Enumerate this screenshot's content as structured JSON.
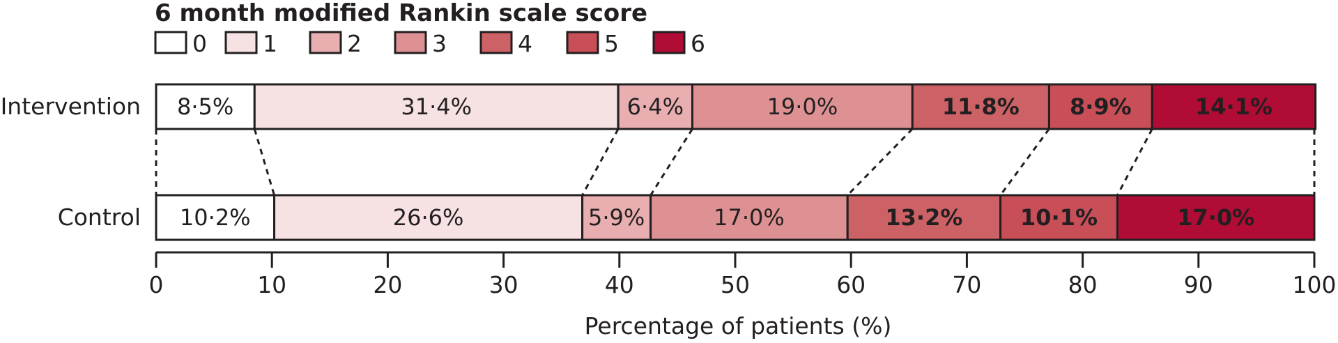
{
  "chart_data": {
    "type": "bar",
    "orientation": "horizontal",
    "stacked": true,
    "legend_title": "6 month modified Rankin scale score",
    "legend_position": "top-left",
    "legend_entries": [
      "0",
      "1",
      "2",
      "3",
      "4",
      "5",
      "6"
    ],
    "colors": [
      "#ffffff",
      "#f6e1e3",
      "#e9aeb0",
      "#dd9193",
      "#cd6266",
      "#c84e58",
      "#b10c35"
    ],
    "categories": [
      "Intervention",
      "Control"
    ],
    "series": [
      {
        "name": "0",
        "values": [
          8.5,
          10.2
        ],
        "labels": [
          "8·5%",
          "10·2%"
        ]
      },
      {
        "name": "1",
        "values": [
          31.4,
          26.6
        ],
        "labels": [
          "31·4%",
          "26·6%"
        ]
      },
      {
        "name": "2",
        "values": [
          6.4,
          5.9
        ],
        "labels": [
          "6·4%",
          "5·9%"
        ]
      },
      {
        "name": "3",
        "values": [
          19.0,
          17.0
        ],
        "labels": [
          "19·0%",
          "17·0%"
        ]
      },
      {
        "name": "4",
        "values": [
          11.8,
          13.2
        ],
        "labels": [
          "11·8%",
          "13·2%"
        ]
      },
      {
        "name": "5",
        "values": [
          8.9,
          10.1
        ],
        "labels": [
          "8·9%",
          "10·1%"
        ]
      },
      {
        "name": "6",
        "values": [
          14.1,
          17.0
        ],
        "labels": [
          "14·1%",
          "17·0%"
        ]
      }
    ],
    "xlabel": "Percentage of patients (%)",
    "xlim": [
      0,
      100
    ],
    "xticks": [
      "0",
      "10",
      "20",
      "30",
      "40",
      "50",
      "60",
      "70",
      "80",
      "90",
      "100"
    ],
    "connectors": "dashed lines joining segment boundaries between bars"
  }
}
